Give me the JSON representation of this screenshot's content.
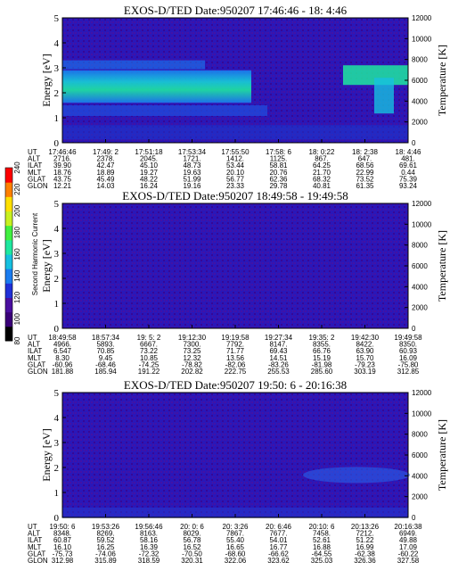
{
  "colorbar": {
    "label": "Second Harmonic Current",
    "ticks": [
      "240",
      "220",
      "200",
      "180",
      "160",
      "140",
      "120",
      "100",
      "80"
    ],
    "colors": [
      "#000000",
      "#3a0078",
      "#4a0fa0",
      "#2030d8",
      "#1a7cf0",
      "#16c0e0",
      "#1ee8a0",
      "#40f040",
      "#c8f020",
      "#ffe000",
      "#ff8000",
      "#ff0000"
    ]
  },
  "panels": [
    {
      "title": "EXOS-D/TED   Date:950207  17:46:46 - 18: 4:46",
      "ylabel": "Energy [eV]",
      "y2label": "Temperature [K]",
      "yticks": [
        "0",
        "1",
        "2",
        "3",
        "4",
        "5"
      ],
      "y2ticks": [
        "0",
        "2000",
        "4000",
        "6000",
        "8000",
        "10000",
        "12000"
      ],
      "row_labels": [
        "UT",
        "ALT",
        "ILAT",
        "MLT",
        "GLAT",
        "GLON"
      ],
      "columns": [
        [
          "17:46:46",
          "2716.",
          "39.90",
          "18.76",
          "43.75",
          "12.21"
        ],
        [
          "17:49: 2",
          "2378.",
          "42.47",
          "18.89",
          "45.49",
          "14.03"
        ],
        [
          "17:51:18",
          "2045.",
          "45.10",
          "19.27",
          "48.22",
          "16.24"
        ],
        [
          "17:53:34",
          "1721.",
          "48.73",
          "19.63",
          "51.99",
          "19.16"
        ],
        [
          "17:55:50",
          "1412.",
          "53.44",
          "20.10",
          "56.77",
          "23.33"
        ],
        [
          "17:58: 6",
          "1125.",
          "58.81",
          "20.76",
          "62.36",
          "29.78"
        ],
        [
          "18: 0:22",
          "867.",
          "64.25",
          "21.70",
          "68.32",
          "40.81"
        ],
        [
          "18: 2:38",
          "647.",
          "68.56",
          "22.99",
          "73.52",
          "61.35"
        ],
        [
          "18: 4:46",
          "481.",
          "69.61",
          "0.44",
          "75.39",
          "93.24"
        ]
      ]
    },
    {
      "title": "EXOS-D/TED   Date:950207  18:49:58 - 19:49:58",
      "ylabel": "Energy [eV]",
      "y2label": "Temperature [K]",
      "yticks": [
        "0",
        "1",
        "2",
        "3",
        "4",
        "5"
      ],
      "y2ticks": [
        "0",
        "2000",
        "4000",
        "6000",
        "8000",
        "10000",
        "12000"
      ],
      "row_labels": [
        "UT",
        "ALT",
        "ILAT",
        "MLT",
        "GLAT",
        "GLON"
      ],
      "columns": [
        [
          "18:49:58",
          "4966.",
          "6.547",
          "8.30",
          "-60.96",
          "181.88"
        ],
        [
          "18:57:34",
          "5893.",
          "70.85",
          "9.45",
          "-68.46",
          "185.94"
        ],
        [
          "19: 5: 2",
          "6667.",
          "73.22",
          "10.85",
          "-74.25",
          "191.22"
        ],
        [
          "19:12:30",
          "7300.",
          "73.25",
          "12.32",
          "-78.82",
          "202.82"
        ],
        [
          "19:19:58",
          "7792.",
          "71.77",
          "13.56",
          "-82.06",
          "222.75"
        ],
        [
          "19:27:34",
          "8147.",
          "69.43",
          "14.51",
          "-83.26",
          "255.53"
        ],
        [
          "19:35: 2",
          "8355.",
          "66.76",
          "15.19",
          "-81.98",
          "285.60"
        ],
        [
          "19:42:30",
          "8422.",
          "63.90",
          "15.70",
          "-79.23",
          "303.19"
        ],
        [
          "19:49:58",
          "8350.",
          "60.93",
          "16.09",
          "-75.80",
          "312.85"
        ]
      ]
    },
    {
      "title": "EXOS-D/TED   Date:950207  19:50: 6 - 20:16:38",
      "ylabel": "Energy [eV]",
      "y2label": "Temperature [K]",
      "yticks": [
        "0",
        "1",
        "2",
        "3",
        "4",
        "5"
      ],
      "y2ticks": [
        "0",
        "2000",
        "4000",
        "6000",
        "8000",
        "10000",
        "12000"
      ],
      "row_labels": [
        "UT",
        "ALT",
        "ILAT",
        "MLT",
        "GLAT",
        "GLON"
      ],
      "columns": [
        [
          "19:50: 6",
          "8348.",
          "60.87",
          "16.10",
          "-75.73",
          "312.98"
        ],
        [
          "19:53:26",
          "8269.",
          "59.52",
          "16.25",
          "-74.06",
          "315.89"
        ],
        [
          "19:56:46",
          "8163.",
          "58.16",
          "16.39",
          "-72.32",
          "318.59"
        ],
        [
          "20: 0: 6",
          "8029.",
          "56.78",
          "16.52",
          "-70.50",
          "320.31"
        ],
        [
          "20: 3:26",
          "7867.",
          "55.40",
          "16.65",
          "-68.60",
          "322.06"
        ],
        [
          "20: 6:46",
          "7677.",
          "54.01",
          "16.77",
          "-66.62",
          "323.62"
        ],
        [
          "20:10: 6",
          "7458.",
          "52.61",
          "16.88",
          "-64.55",
          "325.03"
        ],
        [
          "20:13:26",
          "7212.",
          "51.22",
          "16.99",
          "-62.38",
          "326.36"
        ],
        [
          "20:16:38",
          "6949.",
          "49.88",
          "17.09",
          "-60.22",
          "327.58"
        ]
      ]
    }
  ],
  "chart_data": [
    {
      "type": "heatmap",
      "title": "EXOS-D/TED   Date:950207  17:46:46 - 18: 4:46",
      "xlabel": "UT",
      "ylabel": "Energy [eV]",
      "y2label": "Temperature [K]",
      "ylim": [
        0,
        5
      ],
      "y2lim": [
        0,
        12000
      ],
      "x": [
        "17:46:46",
        "17:49: 2",
        "17:51:18",
        "17:53:34",
        "17:55:50",
        "17:58: 6",
        "18: 0:22",
        "18: 2:38",
        "18: 4:46"
      ]
    },
    {
      "type": "heatmap",
      "title": "EXOS-D/TED   Date:950207  18:49:58 - 19:49:58",
      "xlabel": "UT",
      "ylabel": "Energy [eV]",
      "y2label": "Temperature [K]",
      "ylim": [
        0,
        5
      ],
      "y2lim": [
        0,
        12000
      ],
      "x": [
        "18:49:58",
        "18:57:34",
        "19: 5: 2",
        "19:12:30",
        "19:19:58",
        "19:27:34",
        "19:35: 2",
        "19:42:30",
        "19:49:58"
      ]
    },
    {
      "type": "heatmap",
      "title": "EXOS-D/TED   Date:950207  19:50: 6 - 20:16:38",
      "xlabel": "UT",
      "ylabel": "Energy [eV]",
      "y2label": "Temperature [K]",
      "ylim": [
        0,
        5
      ],
      "y2lim": [
        0,
        12000
      ],
      "x": [
        "19:50: 6",
        "19:53:26",
        "19:56:46",
        "20: 0: 6",
        "20: 3:26",
        "20: 6:46",
        "20:10: 6",
        "20:13:26",
        "20:16:38"
      ]
    }
  ]
}
